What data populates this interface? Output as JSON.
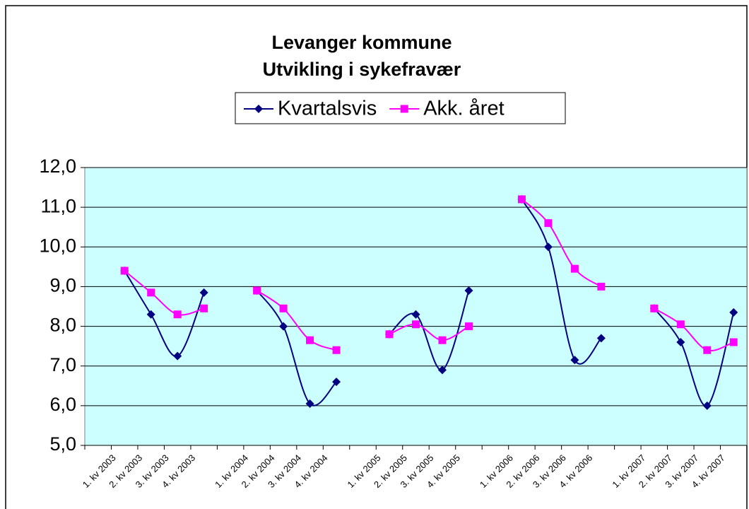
{
  "chart_data": {
    "type": "line",
    "title": [
      "Levanger kommune",
      "Utvikling i sykefravær"
    ],
    "categories": [
      null,
      "1. kv 2003",
      "2. kv 2003",
      "3. kv 2003",
      "4. kv 2003",
      null,
      "1. kv 2004",
      "2. kv 2004",
      "3. kv 2004",
      "4. kv 2004",
      null,
      "1. kv 2005",
      "2. kv 2005",
      "3. kv 2005",
      "4. kv 2005",
      null,
      "1. kv 2006",
      "2. kv 2006",
      "3. kv 2006",
      "4. kv 2006",
      null,
      "1. kv 2007",
      "2. kv 2007",
      "3. kv 2007",
      "4. kv 2007"
    ],
    "series": [
      {
        "name": "Kvartalsvis",
        "color": "#000080",
        "marker": "diamond",
        "values": [
          null,
          9.4,
          8.3,
          7.25,
          8.85,
          null,
          8.9,
          8.0,
          6.05,
          6.6,
          null,
          7.8,
          8.3,
          6.9,
          8.9,
          null,
          11.2,
          10.0,
          7.15,
          7.7,
          null,
          8.45,
          7.6,
          6.0,
          8.35
        ]
      },
      {
        "name": "Akk. året",
        "color": "#ff00ff",
        "marker": "square",
        "values": [
          null,
          9.4,
          8.85,
          8.3,
          8.45,
          null,
          8.9,
          8.45,
          7.65,
          7.4,
          null,
          7.8,
          8.05,
          7.65,
          8.0,
          null,
          11.2,
          10.6,
          9.45,
          9.0,
          null,
          8.45,
          8.05,
          7.4,
          7.6
        ]
      }
    ],
    "ylim": [
      5,
      12
    ],
    "yticks": [
      {
        "value": 5,
        "label": "5,0"
      },
      {
        "value": 6,
        "label": "6,0"
      },
      {
        "value": 7,
        "label": "7,0"
      },
      {
        "value": 8,
        "label": "8,0"
      },
      {
        "value": 9,
        "label": "9,0"
      },
      {
        "value": 10,
        "label": "10,0"
      },
      {
        "value": 11,
        "label": "11,0"
      },
      {
        "value": 12,
        "label": "12,0"
      }
    ],
    "grid": true,
    "smooth": true,
    "legend": "top",
    "plot_background": "#ccffff"
  }
}
